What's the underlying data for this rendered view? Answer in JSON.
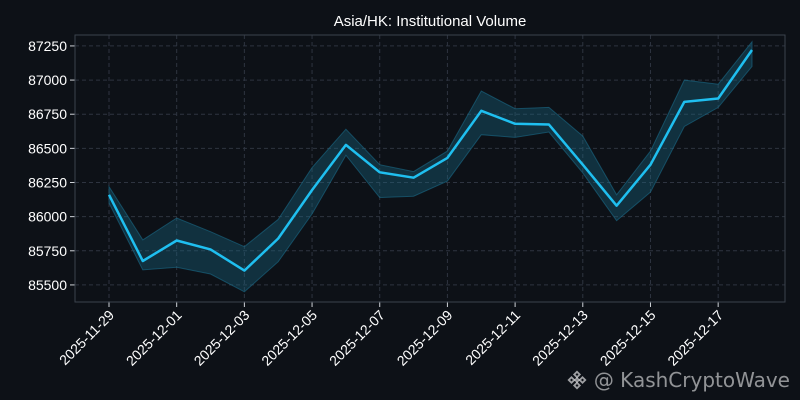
{
  "chart_data": {
    "type": "line",
    "title": "Asia/HK: Institutional Volume",
    "xlabel": "",
    "ylabel": "",
    "x": [
      "2025-11-29",
      "2025-11-30",
      "2025-12-01",
      "2025-12-02",
      "2025-12-03",
      "2025-12-04",
      "2025-12-05",
      "2025-12-06",
      "2025-12-07",
      "2025-12-08",
      "2025-12-09",
      "2025-12-10",
      "2025-12-11",
      "2025-12-12",
      "2025-12-13",
      "2025-12-14",
      "2025-12-15",
      "2025-12-16",
      "2025-12-17",
      "2025-12-18"
    ],
    "x_tick_labels": [
      "2025-11-29",
      "2025-12-01",
      "2025-12-03",
      "2025-12-05",
      "2025-12-07",
      "2025-12-09",
      "2025-12-11",
      "2025-12-13",
      "2025-12-15",
      "2025-12-17"
    ],
    "y_tick_labels": [
      "85500",
      "85750",
      "86000",
      "86250",
      "86500",
      "86750",
      "87000",
      "87250"
    ],
    "ylim": [
      85375,
      87330
    ],
    "grid": true,
    "series": [
      {
        "values": [
          86160,
          85675,
          85825,
          85760,
          85605,
          85840,
          86195,
          86525,
          86325,
          86285,
          86430,
          86775,
          86680,
          86675,
          86380,
          86080,
          86380,
          86840,
          86865,
          87220
        ],
        "band_upper": [
          86220,
          85830,
          85990,
          85890,
          85780,
          85980,
          86360,
          86640,
          86380,
          86330,
          86480,
          86920,
          86790,
          86800,
          86590,
          86160,
          86480,
          87000,
          86970,
          87280
        ],
        "band_lower": [
          86100,
          85610,
          85630,
          85580,
          85450,
          85670,
          86020,
          86450,
          86140,
          86150,
          86260,
          86600,
          86580,
          86620,
          86320,
          85970,
          86180,
          86660,
          86800,
          87100
        ]
      }
    ],
    "colors": {
      "line": "#1fbff0",
      "band": "#1a6d8a",
      "background": "#0d1117",
      "grid": "#2e3440",
      "text": "#ffffff"
    }
  },
  "watermark": {
    "text": "@ KashCryptoWave",
    "icon": "binance-logo-icon"
  }
}
